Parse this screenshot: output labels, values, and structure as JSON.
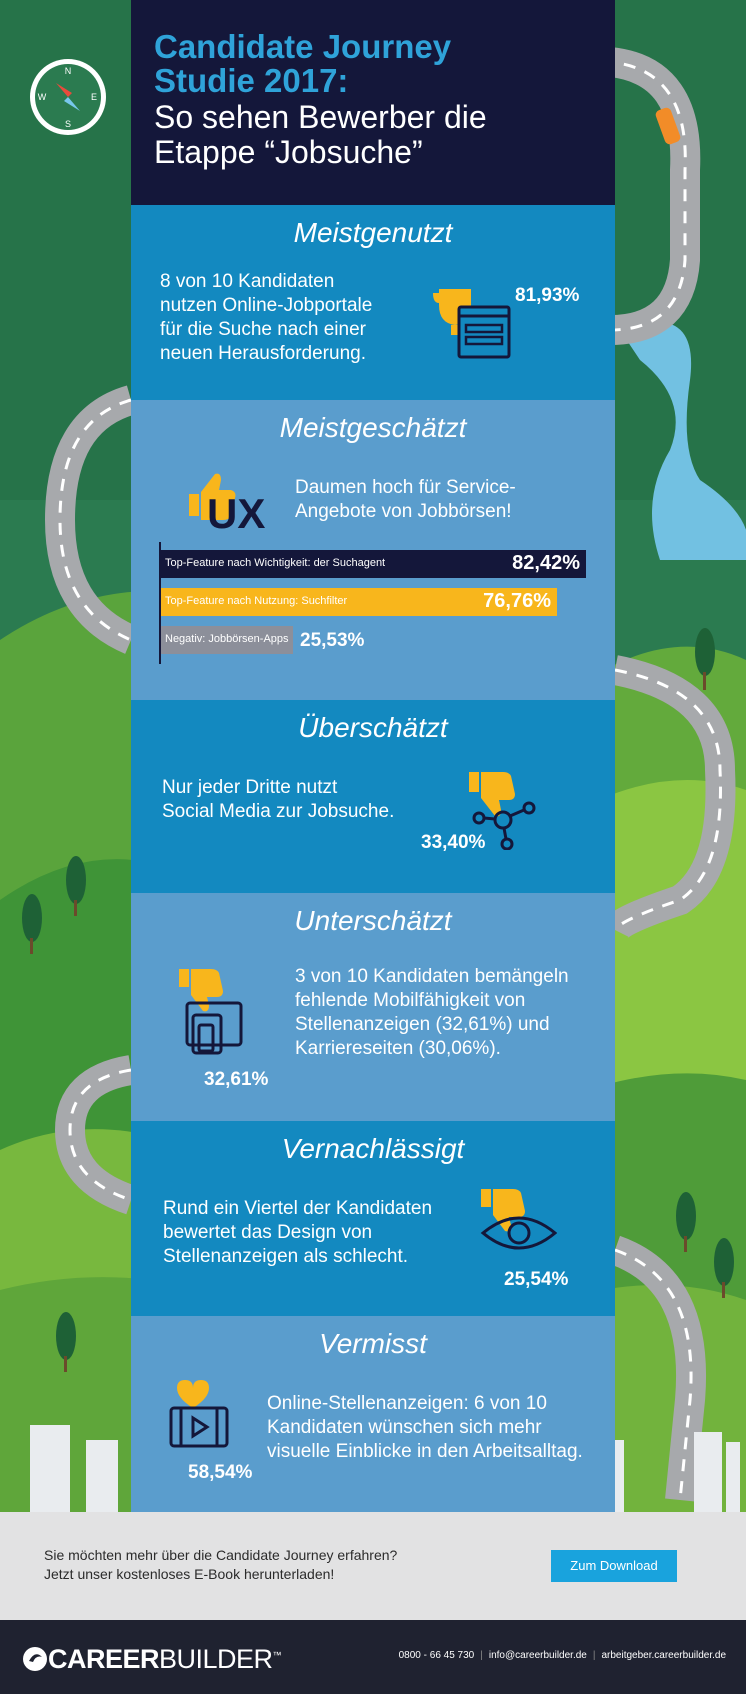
{
  "header": {
    "title_line1": "Candidate Journey",
    "title_line2": "Studie 2017:",
    "subtitle_line1": "So sehen Bewerber die",
    "subtitle_line2": "Etappe “Jobsuche”"
  },
  "sections": {
    "meistgenutzt": {
      "heading": "Meistgenutzt",
      "text": [
        "8 von 10 Kandidaten",
        "nutzen Online-Jobportale",
        "für die Suche nach einer",
        "neuen Herausforderung."
      ],
      "percent": "81,93%"
    },
    "meistgeschaetzt": {
      "heading": "Meistgeschätzt",
      "text": [
        "Daumen hoch für Service-",
        "Angebote von Jobbörsen!"
      ],
      "icon_text": "UX",
      "bars": [
        {
          "label": "Top-Feature nach Wichtigkeit: der Suchagent",
          "value": "82,42%",
          "fraction": 0.8242,
          "color": "#14173a"
        },
        {
          "label": "Top-Feature nach Nutzung: Suchfilter",
          "value": "76,76%",
          "fraction": 0.7676,
          "color": "#f8b61c"
        },
        {
          "label": "Negativ: Jobbörsen-Apps",
          "value": "25,53%",
          "fraction": 0.2553,
          "color": "#8c8f9a"
        }
      ]
    },
    "ueberschaetzt": {
      "heading": "Überschätzt",
      "text": [
        "Nur jeder Dritte nutzt",
        "Social Media zur Jobsuche."
      ],
      "percent": "33,40%"
    },
    "unterschaetzt": {
      "heading": "Unterschätzt",
      "text": [
        "3 von 10 Kandidaten bemängeln",
        "fehlende Mobilfähigkeit von",
        "Stellenanzeigen (32,61%) und",
        "Karriereseiten (30,06%)."
      ],
      "percent": "32,61%"
    },
    "vernachlaessigt": {
      "heading": "Vernachlässigt",
      "text": [
        "Rund ein Viertel der Kandidaten",
        "bewertet das Design von",
        "Stellenanzeigen als schlecht."
      ],
      "percent": "25,54%"
    },
    "vermisst": {
      "heading": "Vermisst",
      "text": [
        "Online-Stellenanzeigen: 6 von 10",
        "Kandidaten wünschen sich mehr",
        "visuelle Einblicke in den Arbeitsalltag."
      ],
      "percent": "58,54%"
    }
  },
  "compass": {
    "n": "N",
    "e": "E",
    "s": "S",
    "w": "W"
  },
  "cta": {
    "line1": "Sie möchten mehr über die Candidate Journey erfahren?",
    "line2": "Jetzt unser kostenloses E-Book herunterladen!",
    "button": "Zum Download"
  },
  "footer": {
    "logo_bold": "CAREER",
    "logo_light": "BUILDER",
    "tm": "™",
    "phone": "0800 - 66 45 730",
    "email": "info@careerbuilder.de",
    "website": "arbeitgeber.careerbuilder.de"
  },
  "colors": {
    "navy": "#14173a",
    "accent_blue": "#2fa3d9",
    "yellow": "#f8b61c",
    "section_dark": "#1389c0",
    "section_light": "#5a9dcd"
  }
}
